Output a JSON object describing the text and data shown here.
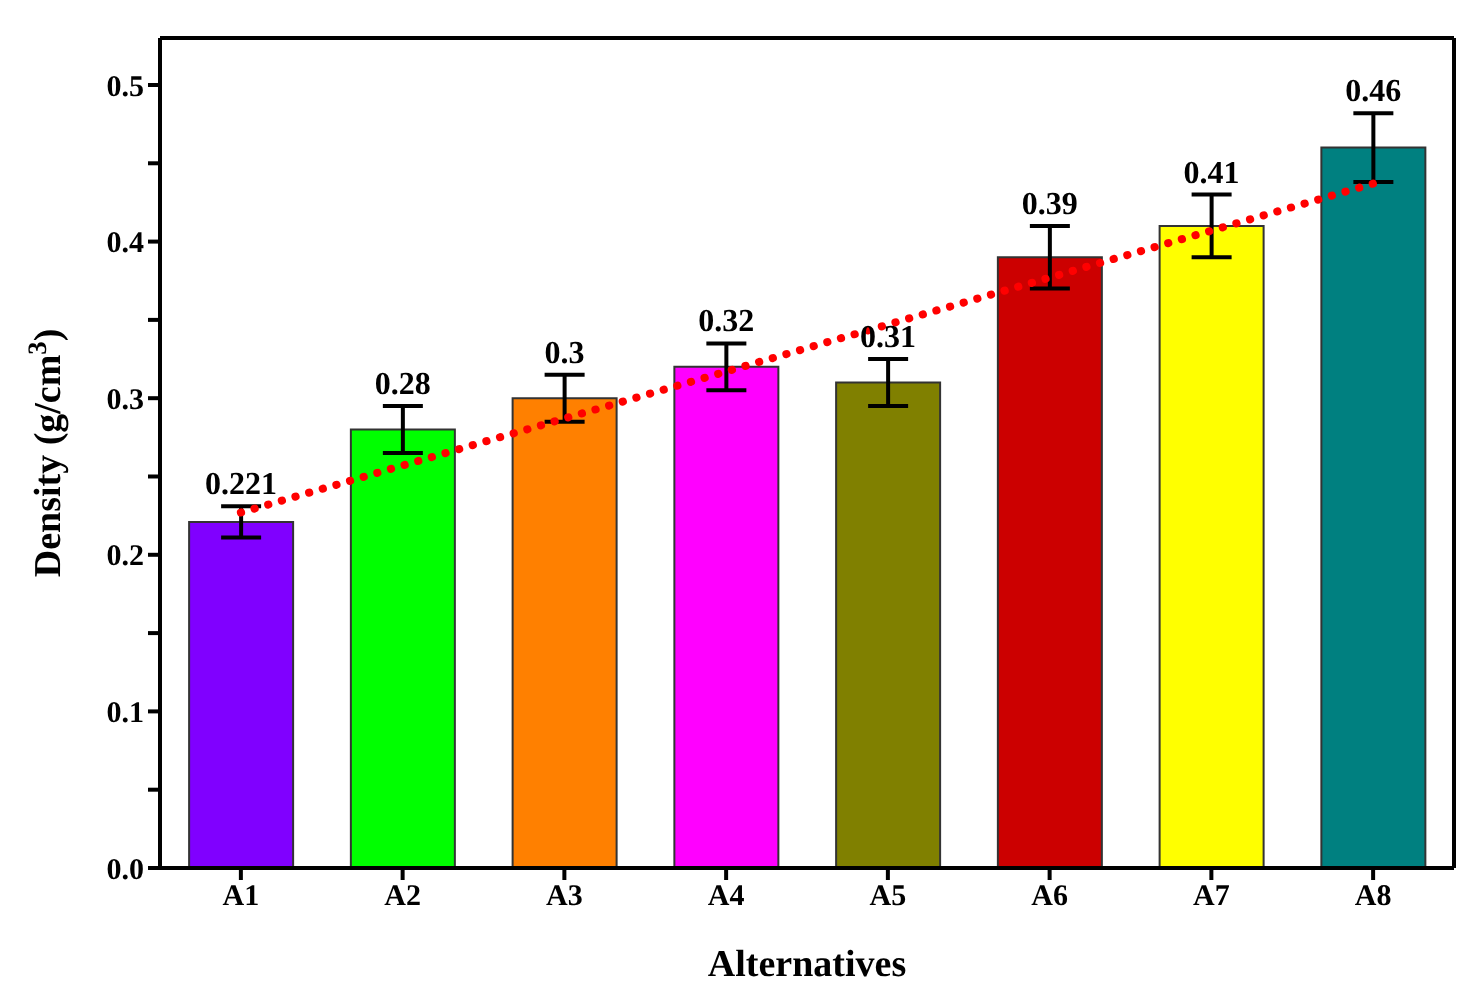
{
  "chart_data": {
    "type": "bar",
    "xlabel": "Alternatives",
    "ylabel": "Density (g/cm$^{3}$)",
    "categories": [
      "A1",
      "A2",
      "A3",
      "A4",
      "A5",
      "A6",
      "A7",
      "A8"
    ],
    "series": [
      {
        "values": [
          0.221,
          0.28,
          0.3,
          0.32,
          0.31,
          0.39,
          0.41,
          0.46
        ],
        "colors": [
          "#8000ff",
          "#00ff00",
          "#ff8000",
          "#ff00ff",
          "#808000",
          "#cc0000",
          "#ffff00",
          "#008080"
        ],
        "errors": [
          0.01,
          0.015,
          0.015,
          0.015,
          0.015,
          0.02,
          0.02,
          0.022
        ],
        "value_labels": [
          "0.221",
          "0.28",
          "0.3",
          "0.32",
          "0.31",
          "0.39",
          "0.41",
          "0.46"
        ]
      },
      {
        "type": "line",
        "color": "#ff0000",
        "values": [
          0.227,
          0.257,
          0.287,
          0.317,
          0.347,
          0.377,
          0.407,
          0.437
        ],
        "line_style": "dotted",
        "marker": "none"
      }
    ],
    "ylim": [
      0,
      0.53
    ],
    "yticks": [
      {
        "value": 0,
        "label": "0.0"
      },
      {
        "value": 0.05,
        "label": null
      },
      0.1,
      {
        "value": 0.15,
        "label": null
      },
      0.2,
      {
        "value": 0.25,
        "label": null
      },
      0.3,
      {
        "value": 0.35,
        "label": null
      },
      0.4,
      {
        "value": 0.45,
        "label": null
      },
      0.5
    ],
    "grid": false,
    "legend": false
  }
}
